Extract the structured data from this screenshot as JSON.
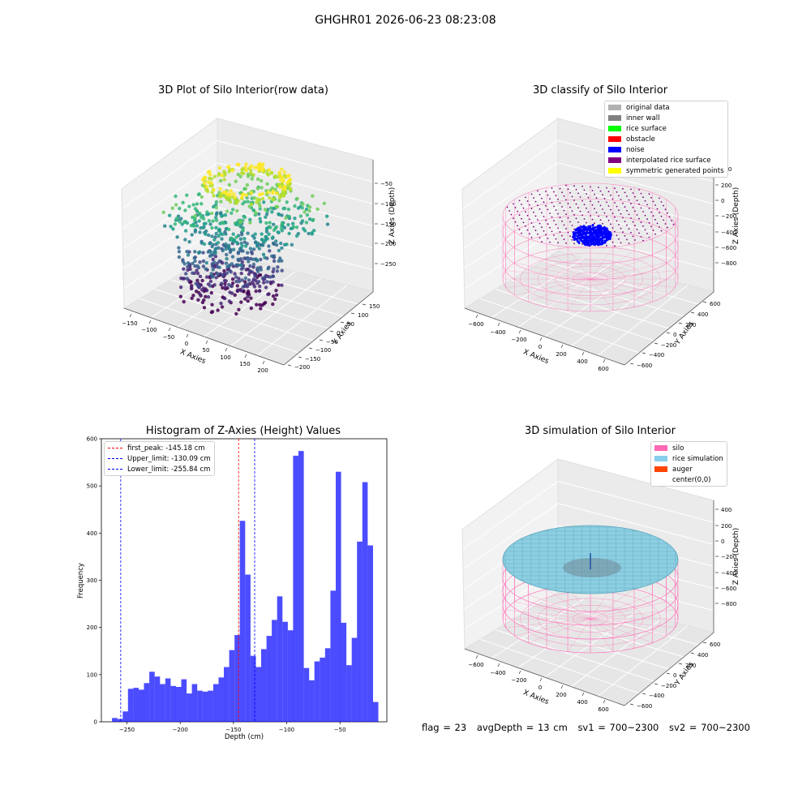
{
  "suptitle": "GHGHR01 2026-06-23 08:23:08",
  "chart_data": [
    {
      "type": "scatter",
      "subtype": "3d",
      "title": "3D Plot of Silo Interior(row data)",
      "xlabel": "X Axies",
      "ylabel": "Y Axies",
      "zlabel": "Z Axies (Depth)",
      "x_ticks": [
        "−150",
        "−100",
        "−50",
        "0",
        "50",
        "100",
        "150",
        "200"
      ],
      "y_ticks": [
        "−200",
        "−150",
        "−100",
        "−50",
        "0",
        "50",
        "100",
        "150"
      ],
      "z_ticks": [
        "−50",
        "−100",
        "−150",
        "−200",
        "−250"
      ],
      "xlim": [
        -170,
        230
      ],
      "ylim": [
        -210,
        170
      ],
      "zlim": [
        -290,
        -20
      ],
      "colormap": "viridis",
      "grid": true
    },
    {
      "type": "scatter",
      "subtype": "3d",
      "title": "3D classify of Silo Interior",
      "xlabel": "X Axies",
      "ylabel": "Y Axies",
      "zlabel": "Z Axies (Depth)",
      "x_ticks": [
        "−600",
        "−400",
        "−200",
        "0",
        "200",
        "400",
        "600"
      ],
      "y_ticks": [
        "−600",
        "−400",
        "−200",
        "0",
        "200",
        "400",
        "600"
      ],
      "z_ticks": [
        "400",
        "200",
        "0",
        "−200",
        "−400",
        "−600",
        "−800"
      ],
      "legend_position": "top-right",
      "legend": [
        {
          "label": "original data",
          "color": "#b0b0b0"
        },
        {
          "label": "inner wall",
          "color": "#808080"
        },
        {
          "label": "rice surface",
          "color": "#00ff00"
        },
        {
          "label": "obstacle",
          "color": "#ff0000"
        },
        {
          "label": "noise",
          "color": "#0000ff"
        },
        {
          "label": "interpolated rice surface",
          "color": "#800080"
        },
        {
          "label": "symmetric generated points",
          "color": "#ffff00"
        }
      ],
      "grid": true
    },
    {
      "type": "bar",
      "subtype": "histogram",
      "title": "Histogram of Z-Axies (Height) Values",
      "xlabel": "Depth (cm)",
      "ylabel": "Frequency",
      "xlim": [
        -274,
        -6
      ],
      "ylim": [
        0,
        600
      ],
      "x_ticks": [
        -250,
        -200,
        -150,
        -100,
        -50
      ],
      "x_tick_labels": [
        "−250",
        "−200",
        "−150",
        "−100",
        "−50"
      ],
      "y_ticks": [
        0,
        100,
        200,
        300,
        400,
        500,
        600
      ],
      "bin_start": -264,
      "bin_width": 5,
      "values": [
        8,
        6,
        22,
        70,
        72,
        68,
        82,
        106,
        96,
        80,
        92,
        76,
        74,
        90,
        60,
        80,
        66,
        64,
        66,
        80,
        94,
        116,
        152,
        184,
        426,
        312,
        140,
        116,
        154,
        182,
        216,
        266,
        212,
        194,
        564,
        574,
        114,
        88,
        128,
        136,
        156,
        278,
        530,
        210,
        120,
        178,
        382,
        508,
        374,
        42
      ],
      "bar_color": "#0000ff",
      "lines": [
        {
          "label": "first_peak: -145.18 cm",
          "value": -145.18,
          "color": "#ff0000"
        },
        {
          "label": "Upper_limit: -130.09 cm",
          "value": -130.09,
          "color": "#0000ff"
        },
        {
          "label": "Lower_limit: -255.84 cm",
          "value": -255.84,
          "color": "#0000ff"
        }
      ],
      "legend_position": "top-left",
      "grid": false
    },
    {
      "type": "area",
      "subtype": "3d surface",
      "title": "3D simulation of Silo Interior",
      "xlabel": "X Axies",
      "ylabel": "Y Axies",
      "zlabel": "Z Axies (Depth)",
      "x_ticks": [
        "−600",
        "−400",
        "−200",
        "0",
        "200",
        "400",
        "600"
      ],
      "y_ticks": [
        "−600",
        "−400",
        "−200",
        "0",
        "200",
        "400",
        "600"
      ],
      "z_ticks": [
        "400",
        "200",
        "0",
        "−200",
        "−400",
        "−600",
        "−800"
      ],
      "legend_position": "top-right",
      "legend": [
        {
          "label": "silo",
          "color": "#ff69b4"
        },
        {
          "label": "rice simulation",
          "color": "#87ceeb"
        },
        {
          "label": "auger",
          "color": "#ff4500"
        },
        {
          "label": "center(0,0)",
          "color": ""
        }
      ],
      "grid": true
    }
  ],
  "footer": {
    "flag": "flag = 23",
    "avg": "avgDepth = 13 cm",
    "sv1": "sv1 = 700~2300",
    "sv2": "sv2 = 700~2300"
  }
}
